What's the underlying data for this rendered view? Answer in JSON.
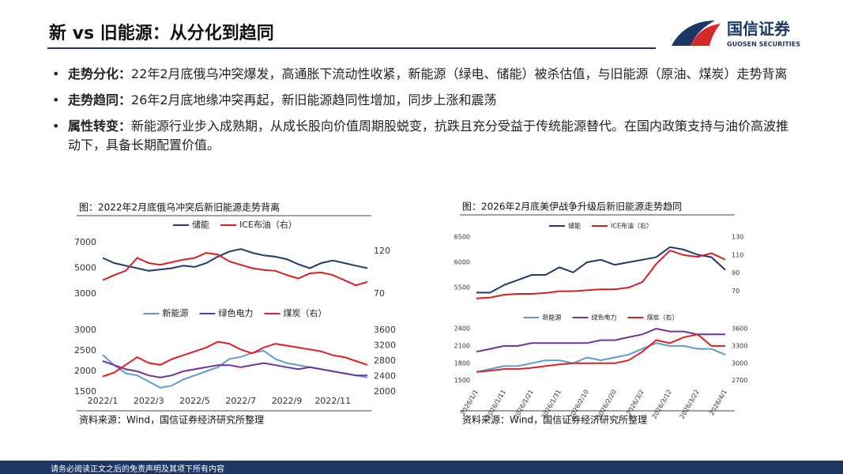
{
  "header": {
    "title": "新 vs 旧能源：从分化到趋同",
    "logo": "国信证券",
    "logo_sub": "GUOSEN SECURITIES"
  },
  "bullets": [
    {
      "label": "走势分化：",
      "text": "22年2月底俄乌冲突爆发，高通胀下流动性收紧，新能源（绿电、储能）被杀估值，与旧能源（原油、煤炭）走势背离"
    },
    {
      "label": "走势趋同：",
      "text": "26年2月底地缘冲突再起，新旧能源趋同性增加，同步上涨和震荡"
    },
    {
      "label": "属性转变：",
      "text": "新能源行业步入成熟期，从成长股向价值周期股蜕变，抗跌且充分受益于传统能源替代。在国内政策支持与油价高波推动下，具备长期配置价值。"
    }
  ],
  "footer": "请务必阅读正文之后的免责声明及其项下所有内容",
  "chart_data": [
    {
      "type": "line",
      "title": "图：2022年2月底俄乌冲突后新旧能源走势背离",
      "source": "资料来源：Wind，国信证券经济研究所整理",
      "categories": [
        "2022/1",
        null,
        null,
        null,
        "2022/3",
        null,
        null,
        null,
        "2022/5",
        null,
        null,
        null,
        "2022/7",
        null,
        null,
        null,
        "2022/9",
        null,
        null,
        null,
        "2022/11",
        null,
        null,
        null
      ],
      "panels": [
        {
          "ylim": [
            3000,
            7000
          ],
          "yticks": [
            3000,
            5000,
            7000
          ],
          "y2lim": [
            70,
            130
          ],
          "y2ticks": [
            70,
            120
          ],
          "series": [
            {
              "name": "储能",
              "color": "#1f3a6e",
              "values": [
                5800,
                5400,
                5200,
                5000,
                4800,
                4900,
                5000,
                5200,
                5100,
                5400,
                5900,
                6300,
                6500,
                6200,
                6000,
                5900,
                5700,
                5300,
                5000,
                5400,
                5600,
                5400,
                5200,
                5000
              ]
            },
            {
              "name": "ICE布油（右）",
              "color": "#d62020",
              "axis": "y2",
              "values": [
                86,
                92,
                97,
                112,
                106,
                104,
                107,
                110,
                112,
                118,
                116,
                108,
                104,
                100,
                98,
                97,
                92,
                88,
                94,
                95,
                92,
                86,
                80,
                84
              ]
            }
          ]
        },
        {
          "ylim": [
            1500,
            3000
          ],
          "yticks": [
            1500,
            2000,
            2500,
            3000
          ],
          "y2lim": [
            2000,
            3600
          ],
          "y2ticks": [
            2000,
            2400,
            2800,
            3200,
            3600
          ],
          "series": [
            {
              "name": "新能源",
              "color": "#5b9bd5",
              "values": [
                2400,
                2150,
                1950,
                1900,
                1750,
                1600,
                1650,
                1800,
                1900,
                2000,
                2100,
                2300,
                2350,
                2450,
                2500,
                2300,
                2200,
                2150,
                2100,
                2050,
                2000,
                1950,
                1900,
                1850
              ]
            },
            {
              "name": "绿色电力",
              "color": "#7030a0",
              "values": [
                2250,
                2150,
                2050,
                2000,
                1900,
                1850,
                1900,
                2000,
                2050,
                2100,
                2150,
                2150,
                2100,
                2150,
                2200,
                2150,
                2100,
                2050,
                2100,
                2050,
                2000,
                1950,
                1900,
                1900
              ]
            },
            {
              "name": "煤炭（右）",
              "color": "#e02020",
              "axis": "y2",
              "values": [
                2400,
                2500,
                2700,
                2900,
                2750,
                2700,
                2850,
                2950,
                3050,
                3150,
                3300,
                3250,
                3100,
                3000,
                3150,
                3250,
                3200,
                3150,
                3100,
                3050,
                2950,
                2900,
                2800,
                2700
              ]
            }
          ]
        }
      ]
    },
    {
      "type": "line",
      "title": "图：2026年2月底美伊战争升级后新旧能源走势趋同",
      "source": "资料来源：Wind，国信证券经济研究所整理",
      "categories": [
        "2026/1/1",
        null,
        "2026/1/11",
        null,
        "2026/1/21",
        null,
        "2026/1/31",
        null,
        "2026/2/10",
        null,
        "2026/2/20",
        null,
        "2026/3/2",
        null,
        "2026/3/12",
        null,
        "2026/3/22",
        null,
        "2026/4/1"
      ],
      "panels": [
        {
          "ylim": [
            5250,
            6500
          ],
          "yticks": [
            5500,
            6000,
            6500
          ],
          "y2lim": [
            60,
            130
          ],
          "y2ticks": [
            70,
            90,
            110,
            130
          ],
          "series": [
            {
              "name": "储能",
              "color": "#1f3a6e",
              "values": [
                5400,
                5400,
                5550,
                5650,
                5750,
                5750,
                5900,
                5800,
                6000,
                6050,
                5950,
                6000,
                6050,
                6100,
                6300,
                6250,
                6150,
                6100,
                5850
              ]
            },
            {
              "name": "ICE布油（右）",
              "color": "#d62020",
              "axis": "y2",
              "values": [
                62,
                63,
                66,
                67,
                67,
                68,
                70,
                70,
                71,
                72,
                72,
                74,
                80,
                100,
                115,
                110,
                108,
                112,
                105
              ]
            }
          ]
        },
        {
          "ylim": [
            1400,
            2400
          ],
          "yticks": [
            1500,
            1800,
            2100,
            2400
          ],
          "y2lim": [
            2600,
            3600
          ],
          "y2ticks": [
            2700,
            3000,
            3300,
            3600
          ],
          "series": [
            {
              "name": "新能源",
              "color": "#5b9bd5",
              "values": [
                1650,
                1700,
                1750,
                1750,
                1800,
                1850,
                1850,
                1800,
                1900,
                1850,
                1900,
                1950,
                2050,
                2150,
                2100,
                2100,
                2050,
                2050,
                1950
              ]
            },
            {
              "name": "绿色电力",
              "color": "#7030a0",
              "values": [
                2000,
                2050,
                2100,
                2100,
                2150,
                2150,
                2150,
                2150,
                2150,
                2200,
                2200,
                2250,
                2300,
                2400,
                2350,
                2350,
                2300,
                2300,
                2300
              ]
            },
            {
              "name": "煤炭（右）",
              "color": "#e02020",
              "axis": "y2",
              "values": [
                2850,
                2870,
                2900,
                2900,
                2920,
                2950,
                2980,
                3000,
                3000,
                3000,
                3000,
                3050,
                3200,
                3400,
                3350,
                3450,
                3500,
                3300,
                3300
              ]
            }
          ]
        }
      ]
    }
  ]
}
